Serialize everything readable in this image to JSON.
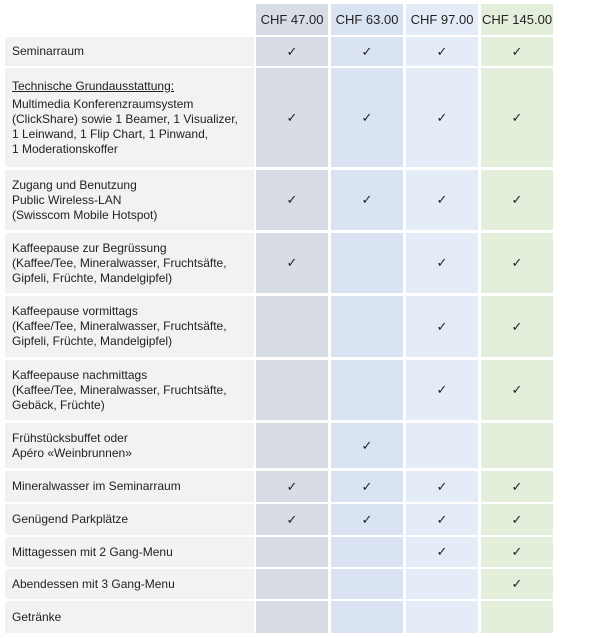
{
  "table": {
    "columns": [
      "CHF 47.00",
      "CHF 63.00",
      "CHF 97.00",
      "CHF 145.00"
    ],
    "rows": [
      {
        "label": [
          "Seminarraum"
        ],
        "checks": [
          "✓",
          "✓",
          "✓",
          "✓"
        ]
      },
      {
        "heading": "Technische Grundausstattung:",
        "label": [
          "Multimedia Konferenzraumsystem",
          "(ClickShare) sowie 1 Beamer, 1 Visualizer,",
          "1 Leinwand, 1 Flip Chart, 1 Pinwand,",
          "1 Moderationskoffer"
        ],
        "checks": [
          "✓",
          "✓",
          "✓",
          "✓"
        ]
      },
      {
        "label": [
          "Zugang und Benutzung",
          "Public Wireless-LAN",
          "(Swisscom Mobile Hotspot)"
        ],
        "checks": [
          "✓",
          "✓",
          "✓",
          "✓"
        ]
      },
      {
        "label": [
          "Kaffeepause zur Begrüssung",
          "(Kaffee/Tee, Mineralwasser, Fruchtsäfte,",
          "Gipfeli, Früchte, Mandelgipfel)"
        ],
        "checks": [
          "✓",
          null,
          "✓",
          "✓"
        ]
      },
      {
        "label": [
          "Kaffeepause vormittags",
          "(Kaffee/Tee, Mineralwasser, Fruchtsäfte,",
          "Gipfeli, Früchte, Mandelgipfel)"
        ],
        "checks": [
          null,
          null,
          "✓",
          "✓"
        ]
      },
      {
        "label": [
          "Kaffeepause nachmittags",
          "(Kaffee/Tee, Mineralwasser, Fruchtsäfte,",
          "Gebäck, Früchte)"
        ],
        "checks": [
          null,
          null,
          "✓",
          "✓"
        ]
      },
      {
        "label": [
          "Frühstücksbuffet oder",
          "Apéro «Weinbrunnen»"
        ],
        "checks": [
          null,
          "✓",
          null,
          null
        ]
      },
      {
        "label": [
          "Mineralwasser im Seminarraum"
        ],
        "checks": [
          "✓",
          "✓",
          "✓",
          "✓"
        ]
      },
      {
        "label": [
          "Genügend Parkplätze"
        ],
        "checks": [
          "✓",
          "✓",
          "✓",
          "✓"
        ]
      },
      {
        "label": [
          "Mittagessen mit 2 Gang-Menu"
        ],
        "checks": [
          null,
          null,
          "✓",
          "✓"
        ]
      },
      {
        "label": [
          "Abendessen mit 3 Gang-Menu"
        ],
        "checks": [
          null,
          null,
          null,
          "✓"
        ]
      },
      {
        "label": [
          "Getränke"
        ],
        "checks": [
          null,
          null,
          null,
          null
        ]
      }
    ]
  }
}
